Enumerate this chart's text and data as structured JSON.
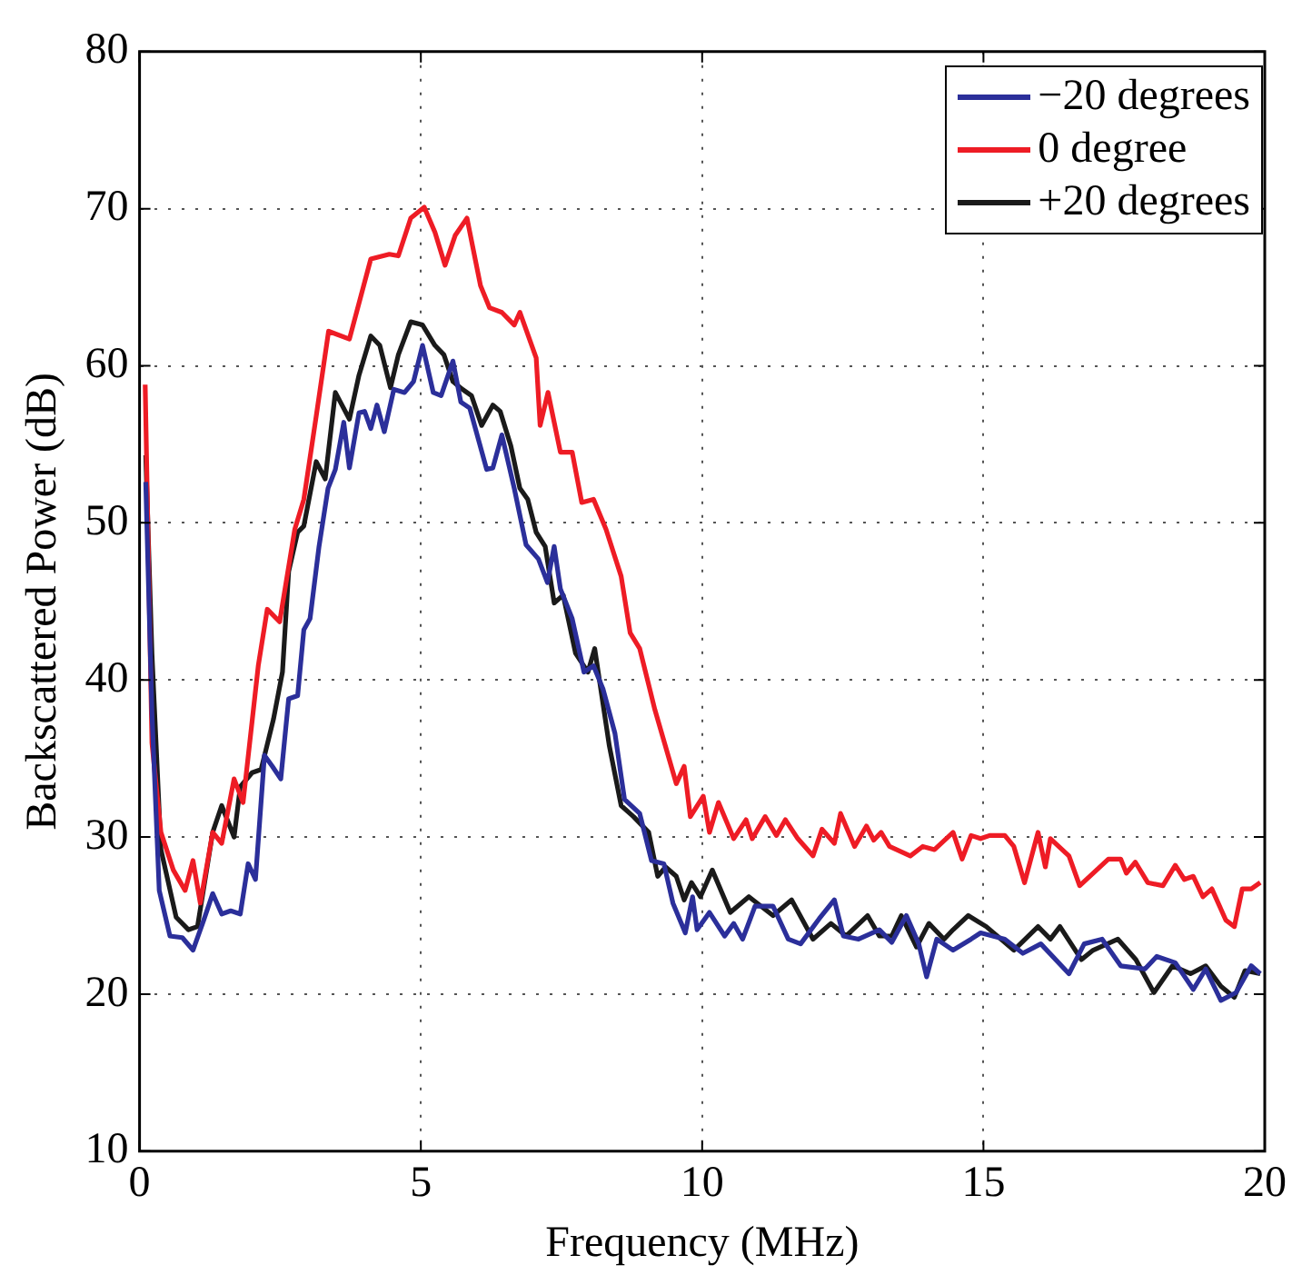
{
  "chart_data": {
    "type": "line",
    "xlabel": "Frequency (MHz)",
    "ylabel": "Backscattered Power (dB)",
    "xlim": [
      0,
      20
    ],
    "ylim": [
      10,
      80
    ],
    "xticks": [
      0,
      5,
      10,
      15,
      20
    ],
    "yticks": [
      10,
      20,
      30,
      40,
      50,
      60,
      70,
      80
    ],
    "grid": true,
    "legend": "top right",
    "marker": "none",
    "line_style": "solid",
    "series": [
      {
        "name": "−20 degrees",
        "color": "#2b2f9a",
        "x": [
          0.11,
          0.22,
          0.35,
          0.54,
          0.76,
          0.95,
          1.14,
          1.3,
          1.46,
          1.62,
          1.79,
          1.93,
          2.06,
          2.22,
          2.36,
          2.51,
          2.65,
          2.81,
          2.92,
          3.03,
          3.19,
          3.35,
          3.48,
          3.63,
          3.73,
          3.9,
          4.0,
          4.11,
          4.22,
          4.35,
          4.52,
          4.71,
          4.87,
          5.03,
          5.22,
          5.36,
          5.57,
          5.71,
          5.87,
          6.17,
          6.28,
          6.44,
          6.66,
          6.87,
          7.09,
          7.25,
          7.37,
          7.48,
          7.69,
          7.9,
          8.07,
          8.24,
          8.45,
          8.62,
          8.89,
          9.1,
          9.32,
          9.48,
          9.7,
          9.83,
          9.91,
          10.13,
          10.4,
          10.56,
          10.72,
          10.94,
          11.26,
          11.53,
          11.75,
          12.08,
          12.35,
          12.51,
          12.78,
          13.15,
          13.37,
          13.63,
          13.85,
          13.99,
          14.17,
          14.46,
          14.78,
          14.95,
          15.38,
          15.7,
          16.02,
          16.52,
          16.79,
          17.11,
          17.44,
          17.87,
          18.08,
          18.41,
          18.73,
          18.95,
          19.22,
          19.49,
          19.76,
          19.92
        ],
        "values": [
          52.6,
          37.9,
          26.6,
          23.7,
          23.6,
          22.8,
          24.7,
          26.4,
          25.1,
          25.3,
          25.1,
          28.3,
          27.3,
          35.2,
          34.5,
          33.7,
          38.8,
          39.0,
          43.2,
          43.9,
          48.5,
          52.2,
          53.4,
          56.4,
          53.5,
          57.0,
          57.1,
          56.0,
          57.5,
          55.8,
          58.5,
          58.3,
          59.0,
          61.3,
          58.3,
          58.1,
          60.3,
          57.7,
          57.3,
          53.4,
          53.5,
          55.6,
          52.2,
          48.6,
          47.7,
          46.2,
          48.5,
          45.8,
          43.9,
          40.5,
          40.9,
          39.4,
          36.6,
          32.4,
          31.5,
          28.5,
          28.3,
          25.8,
          23.9,
          26.2,
          24.1,
          25.2,
          23.7,
          24.5,
          23.5,
          25.6,
          25.6,
          23.5,
          23.2,
          24.8,
          26.0,
          23.7,
          23.5,
          24.1,
          23.3,
          25.0,
          23.2,
          21.1,
          23.5,
          22.8,
          23.5,
          23.9,
          23.5,
          22.6,
          23.2,
          21.3,
          23.2,
          23.5,
          21.8,
          21.6,
          22.4,
          22.0,
          20.3,
          21.6,
          19.6,
          20.1,
          21.8,
          21.3
        ]
      },
      {
        "name": "0 degree",
        "color": "#ee1c25",
        "x": [
          0.1,
          0.22,
          0.38,
          0.6,
          0.81,
          0.95,
          1.08,
          1.3,
          1.46,
          1.68,
          1.84,
          2.11,
          2.27,
          2.49,
          2.76,
          2.92,
          3.14,
          3.36,
          3.73,
          4.11,
          4.44,
          4.6,
          4.82,
          5.06,
          5.25,
          5.43,
          5.61,
          5.82,
          6.06,
          6.22,
          6.44,
          6.66,
          6.76,
          7.05,
          7.12,
          7.26,
          7.48,
          7.69,
          7.86,
          8.07,
          8.29,
          8.56,
          8.72,
          8.89,
          9.16,
          9.54,
          9.68,
          9.79,
          10.02,
          10.13,
          10.29,
          10.56,
          10.78,
          10.89,
          11.12,
          11.32,
          11.48,
          11.7,
          11.97,
          12.13,
          12.35,
          12.46,
          12.71,
          12.92,
          13.05,
          13.18,
          13.33,
          13.7,
          13.92,
          14.13,
          14.46,
          14.62,
          14.78,
          14.95,
          15.11,
          15.38,
          15.54,
          15.73,
          15.97,
          16.1,
          16.19,
          16.52,
          16.71,
          16.95,
          17.22,
          17.44,
          17.54,
          17.7,
          17.92,
          18.19,
          18.41,
          18.57,
          18.73,
          18.9,
          19.06,
          19.31,
          19.46,
          19.6,
          19.76,
          19.92
        ],
        "values": [
          58.8,
          36,
          30.3,
          27.9,
          26.6,
          28.5,
          25.8,
          30.3,
          29.6,
          33.7,
          32.2,
          40.9,
          44.5,
          43.7,
          49.6,
          51.5,
          56.8,
          62.2,
          61.7,
          66.8,
          67.1,
          67,
          69.4,
          70.1,
          68.5,
          66.4,
          68.3,
          69.4,
          65.1,
          63.7,
          63.4,
          62.6,
          63.4,
          60.5,
          56.2,
          58.3,
          54.5,
          54.5,
          51.3,
          51.5,
          49.6,
          46.6,
          43,
          42.0,
          38.1,
          33.4,
          34.5,
          31.3,
          32.6,
          30.3,
          32.2,
          29.9,
          31.1,
          29.9,
          31.3,
          30.1,
          31.1,
          29.9,
          28.8,
          30.5,
          29.6,
          31.5,
          29.4,
          30.7,
          29.8,
          30.3,
          29.4,
          28.8,
          29.4,
          29.2,
          30.3,
          28.6,
          30.1,
          29.9,
          30.1,
          30.1,
          29.4,
          27.1,
          30.3,
          28.1,
          29.9,
          28.8,
          26.9,
          27.7,
          28.6,
          28.6,
          27.7,
          28.4,
          27.1,
          26.9,
          28.2,
          27.3,
          27.5,
          26.2,
          26.7,
          24.7,
          24.3,
          26.7,
          26.7,
          27.1
        ]
      },
      {
        "name": "+20 degrees",
        "color": "#1a1a1a",
        "x": [
          0.11,
          0.22,
          0.38,
          0.65,
          0.87,
          1.03,
          1.3,
          1.46,
          1.68,
          1.79,
          2.0,
          2.16,
          2.38,
          2.54,
          2.65,
          2.81,
          2.92,
          3.14,
          3.3,
          3.48,
          3.73,
          3.9,
          4.11,
          4.27,
          4.46,
          4.6,
          4.82,
          5.03,
          5.25,
          5.41,
          5.57,
          5.74,
          5.9,
          6.08,
          6.28,
          6.41,
          6.6,
          6.76,
          6.9,
          7.05,
          7.21,
          7.37,
          7.53,
          7.75,
          7.97,
          8.09,
          8.35,
          8.56,
          8.78,
          9.05,
          9.21,
          9.35,
          9.54,
          9.68,
          9.81,
          9.97,
          10.18,
          10.5,
          10.83,
          11.26,
          11.59,
          11.97,
          12.29,
          12.56,
          12.94,
          13.15,
          13.37,
          13.54,
          13.81,
          14.03,
          14.3,
          14.46,
          14.73,
          15.05,
          15.54,
          15.97,
          16.19,
          16.36,
          16.74,
          16.95,
          17.39,
          17.71,
          18.03,
          18.36,
          18.68,
          18.95,
          19.22,
          19.46,
          19.65,
          19.92
        ],
        "values": [
          54.3,
          41.7,
          29.2,
          24.9,
          24.1,
          24.3,
          30.3,
          32.0,
          30,
          33.2,
          34.1,
          34.3,
          37.5,
          40.5,
          46.9,
          49.4,
          49.8,
          53.9,
          52.8,
          58.3,
          56.6,
          59.4,
          61.9,
          61.3,
          58.6,
          60.7,
          62.8,
          62.6,
          61.3,
          60.7,
          59.0,
          58.5,
          58.1,
          56.2,
          57.5,
          57.1,
          54.9,
          52.2,
          51.5,
          49.4,
          48.5,
          44.9,
          45.4,
          41.7,
          40.5,
          42,
          35.8,
          32.0,
          31.3,
          30.3,
          27.5,
          28.1,
          27.5,
          26.0,
          27.1,
          26.2,
          27.9,
          25.2,
          26.2,
          25.0,
          26.0,
          23.5,
          24.5,
          23.7,
          25.0,
          23.7,
          23.7,
          25.0,
          23.0,
          24.5,
          23.5,
          24.1,
          25.0,
          24.3,
          22.8,
          24.3,
          23.5,
          24.3,
          22.2,
          22.8,
          23.5,
          22.2,
          20.1,
          21.8,
          21.3,
          21.8,
          20.5,
          19.8,
          21.5,
          21.3
        ]
      }
    ]
  }
}
